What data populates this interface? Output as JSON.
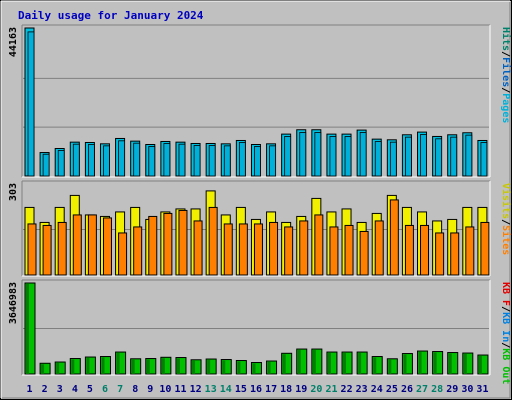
{
  "title": "Daily usage for January 2024",
  "colors": {
    "title": "#0000c0",
    "frame_bg": "#c0c0c0",
    "hits": "#00c0e0",
    "files": "#0060c0",
    "pages": "#00b0d8",
    "visits": "#f0f000",
    "sites": "#ff8000",
    "kbf": "#e00000",
    "kbin": "#0080e0",
    "kbout": "#00c000",
    "weekend_label": "#00806a",
    "weekday_label": "#000080"
  },
  "chart_data": {
    "type": "bar",
    "title": "Daily usage for January 2024",
    "categories": [
      "1",
      "2",
      "3",
      "4",
      "5",
      "6",
      "7",
      "8",
      "9",
      "10",
      "11",
      "12",
      "13",
      "14",
      "15",
      "16",
      "17",
      "18",
      "19",
      "20",
      "21",
      "22",
      "23",
      "24",
      "25",
      "26",
      "27",
      "28",
      "29",
      "30",
      "31"
    ],
    "weekend_days": [
      "6",
      "7",
      "13",
      "14",
      "20",
      "21",
      "27",
      "28"
    ],
    "panels": [
      {
        "scale_label": "44163",
        "ymax": 44163,
        "legend": [
          {
            "text": "Hits",
            "color": "#00806a"
          },
          {
            "text": "/",
            "color": "#000000"
          },
          {
            "text": "Files",
            "color": "#0060c0"
          },
          {
            "text": "/",
            "color": "#000000"
          },
          {
            "text": "Pages",
            "color": "#00b0d8"
          }
        ],
        "series": [
          {
            "name": "Hits",
            "values": [
              44163,
              7000,
              8200,
              10100,
              10000,
              9600,
              11200,
              10400,
              9400,
              10300,
              10100,
              9700,
              9700,
              9600,
              10600,
              9400,
              9600,
              12500,
              13800,
              13800,
              12500,
              12500,
              13700,
              11000,
              10800,
              12300,
              13100,
              11800,
              12300,
              12900,
              10600
            ]
          },
          {
            "name": "Pages",
            "values": [
              43000,
              6500,
              7600,
              9500,
              9400,
              9000,
              10500,
              9800,
              8800,
              9700,
              9500,
              9100,
              9100,
              9000,
              10000,
              8800,
              9000,
              11800,
              13000,
              13000,
              11800,
              11800,
              13000,
              10300,
              10100,
              11600,
              12400,
              11100,
              11600,
              12200,
              10000
            ]
          }
        ]
      },
      {
        "scale_label": "303",
        "ymax": 303,
        "legend": [
          {
            "text": "Visits",
            "color": "#c8c800"
          },
          {
            "text": "/",
            "color": "#000000"
          },
          {
            "text": "Sites",
            "color": "#ff8000"
          }
        ],
        "series": [
          {
            "name": "Visits",
            "values": [
              225,
              175,
              225,
              265,
              200,
              195,
              210,
              225,
              185,
              210,
              220,
              220,
              280,
              200,
              225,
              185,
              210,
              175,
              195,
              255,
              210,
              220,
              175,
              205,
              265,
              225,
              210,
              180,
              185,
              225,
              225
            ]
          },
          {
            "name": "Sites",
            "values": [
              170,
              165,
              175,
              200,
              200,
              190,
              140,
              160,
              195,
              205,
              215,
              180,
              225,
              170,
              170,
              170,
              175,
              160,
              180,
              200,
              160,
              165,
              145,
              180,
              250,
              165,
              165,
              140,
              140,
              160,
              175
            ]
          }
        ]
      },
      {
        "scale_label": "3646983",
        "ymax": 3646983,
        "legend": [
          {
            "text": "KB F",
            "color": "#e00000"
          },
          {
            "text": "/",
            "color": "#000000"
          },
          {
            "text": "KB In",
            "color": "#0080e0"
          },
          {
            "text": "/",
            "color": "#000000"
          },
          {
            "text": "KB Out",
            "color": "#00c000"
          }
        ],
        "series": [
          {
            "name": "KB F",
            "values": [
              3646983,
              430000,
              480000,
              620000,
              680000,
              700000,
              880000,
              610000,
              620000,
              670000,
              660000,
              570000,
              600000,
              580000,
              540000,
              460000,
              520000,
              830000,
              1000000,
              1000000,
              880000,
              880000,
              880000,
              700000,
              610000,
              820000,
              920000,
              900000,
              860000,
              840000,
              760000
            ]
          }
        ]
      }
    ]
  }
}
